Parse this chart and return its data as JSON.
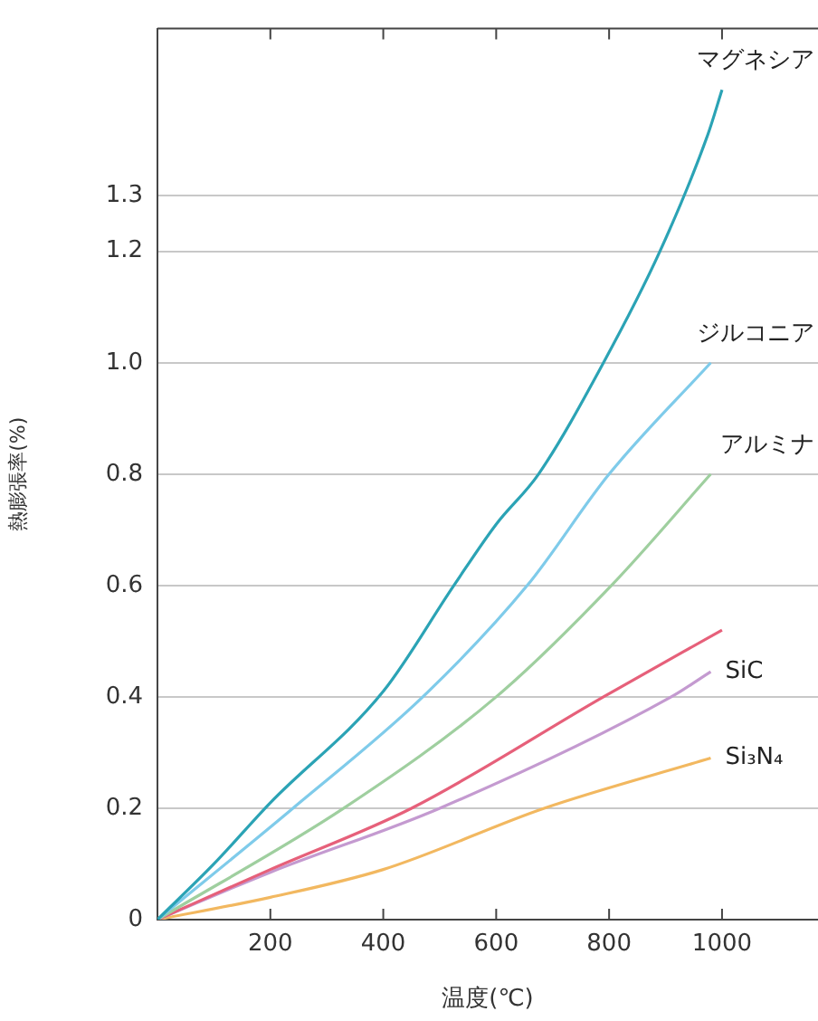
{
  "chart_data": {
    "type": "line",
    "xlabel": "温度(℃)",
    "ylabel": "熱膨張率(%)",
    "xlim": [
      0,
      1170
    ],
    "xticks": [
      200,
      400,
      600,
      800,
      1000
    ],
    "ylim": [
      0,
      1.6
    ],
    "yticks": [
      0,
      0.2,
      0.4,
      0.6,
      0.8,
      {
        "value": 1,
        "label": "1.0"
      },
      1.2,
      1.3
    ],
    "grid": "y",
    "legend": false,
    "marker": "none",
    "line_style": "solid",
    "series": [
      {
        "name": "マグネシア",
        "color": "#2ba3b5",
        "x": [
          0,
          100,
          200,
          400,
          525,
          600,
          675,
          790,
          890,
          975,
          1000
        ],
        "values": [
          0,
          0.1,
          0.21,
          0.41,
          0.6,
          0.71,
          0.8,
          1.0,
          1.2,
          1.41,
          1.49
        ]
      },
      {
        "name": "ジルコニア",
        "color": "#7fcbea",
        "x": [
          0,
          240,
          470,
          655,
          800,
          980
        ],
        "values": [
          0,
          0.2,
          0.4,
          0.6,
          0.8,
          1.0
        ]
      },
      {
        "name": "アルミナ",
        "color": "#9fcf9f",
        "x": [
          0,
          330,
          600,
          804,
          980
        ],
        "values": [
          0,
          0.2,
          0.4,
          0.6,
          0.8
        ]
      },
      {
        "color": "#e6607a",
        "x": [
          0,
          200,
          450,
          790,
          1000
        ],
        "values": [
          0,
          0.09,
          0.2,
          0.4,
          0.52
        ]
      },
      {
        "name": "SiC",
        "color": "#c49ad0",
        "x": [
          0,
          200,
          500,
          910,
          980
        ],
        "values": [
          0,
          0.085,
          0.2,
          0.4,
          0.445
        ]
      },
      {
        "name": "Si₃N₄",
        "color": "#f2b860",
        "x": [
          0,
          200,
          400,
          685,
          980
        ],
        "values": [
          0,
          0.04,
          0.09,
          0.2,
          0.29
        ]
      }
    ]
  }
}
